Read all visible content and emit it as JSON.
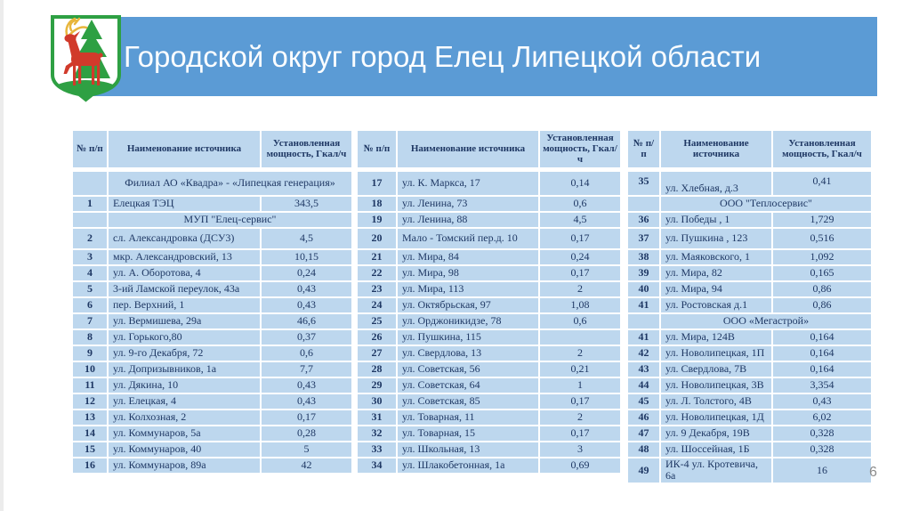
{
  "slide": {
    "title": "Городской округ город Елец Липецкой области",
    "page_number": "6"
  },
  "colors": {
    "band_blue": "#5B9BD5",
    "cell_blue": "#BDD7EE",
    "text_navy": "#1F3864",
    "grid_white": "#FFFFFF",
    "page_gray": "#8C8C8C",
    "arms_green": "#2EA043",
    "arms_red": "#D13A2B",
    "arms_yellow": "#E8B63C"
  },
  "icons": {
    "coat_of_arms": "yelets-city-coat-of-arms (red deer and green fir tree on white shield)"
  },
  "table_header": [
    "№ п/п",
    "Наименование источника",
    "Установленная мощность, Гкал/ч"
  ],
  "tables": [
    {
      "rows": [
        {
          "type": "section",
          "label": "Филиал АО «Квадра» - «Липецкая генерация»"
        },
        {
          "type": "data",
          "num": "1",
          "name": "Елецкая ТЭЦ",
          "value": "343,5"
        },
        {
          "type": "section",
          "label": "МУП \"Елец-сервис\""
        },
        {
          "type": "data",
          "num": "2",
          "name": "сл. Александровка (ДСУ3)",
          "value": "4,5"
        },
        {
          "type": "data",
          "num": "3",
          "name": "мкр. Александровский, 13",
          "value": "10,15"
        },
        {
          "type": "data",
          "num": "4",
          "name": "ул. А. Оборотова, 4",
          "value": "0,24"
        },
        {
          "type": "data",
          "num": "5",
          "name": "3-ий Ламской переулок, 43а",
          "value": "0,43"
        },
        {
          "type": "data",
          "num": "6",
          "name": "пер. Верхний, 1",
          "value": "0,43"
        },
        {
          "type": "data",
          "num": "7",
          "name": "ул. Вермишева, 29а",
          "value": "46,6"
        },
        {
          "type": "data",
          "num": "8",
          "name": "ул. Горького,80",
          "value": "0,37"
        },
        {
          "type": "data",
          "num": "9",
          "name": "ул. 9-го Декабря, 72",
          "value": "0,6"
        },
        {
          "type": "data",
          "num": "10",
          "name": "ул. Допризывников, 1а",
          "value": "7,7"
        },
        {
          "type": "data",
          "num": "11",
          "name": "ул. Дякина, 10",
          "value": "0,43"
        },
        {
          "type": "data",
          "num": "12",
          "name": "ул. Елецкая, 4",
          "value": "0,43"
        },
        {
          "type": "data",
          "num": "13",
          "name": "ул. Колхозная, 2",
          "value": "0,17"
        },
        {
          "type": "data",
          "num": "14",
          "name": "ул. Коммунаров, 5а",
          "value": "0,28"
        },
        {
          "type": "data",
          "num": "15",
          "name": "ул. Коммунаров, 40",
          "value": "5"
        },
        {
          "type": "data",
          "num": "16",
          "name": "ул. Коммунаров, 89а",
          "value": "42"
        }
      ]
    },
    {
      "rows": [
        {
          "type": "data",
          "num": "17",
          "name": "ул. К. Маркса, 17",
          "value": "0,14"
        },
        {
          "type": "data",
          "num": "18",
          "name": "ул. Ленина, 73",
          "value": "0,6"
        },
        {
          "type": "data",
          "num": "19",
          "name": "ул. Ленина, 88",
          "value": "4,5"
        },
        {
          "type": "data",
          "num": "20",
          "name": "Мало - Томский пер.д. 10",
          "value": "0,17"
        },
        {
          "type": "data",
          "num": "21",
          "name": "ул. Мира, 84",
          "value": "0,24"
        },
        {
          "type": "data",
          "num": "22",
          "name": "ул. Мира, 98",
          "value": "0,17"
        },
        {
          "type": "data",
          "num": "23",
          "name": "ул. Мира, 113",
          "value": "2"
        },
        {
          "type": "data",
          "num": "24",
          "name": "ул. Октябрьская, 97",
          "value": "1,08"
        },
        {
          "type": "data",
          "num": "25",
          "name": "ул. Орджоникидзе, 78",
          "value": "0,6"
        },
        {
          "type": "data",
          "num": "26",
          "name": "ул. Пушкина, 115",
          "value": ""
        },
        {
          "type": "data",
          "num": "27",
          "name": "ул. Свердлова, 13",
          "value": "2"
        },
        {
          "type": "data",
          "num": "28",
          "name": "ул. Советская, 56",
          "value": "0,21"
        },
        {
          "type": "data",
          "num": "29",
          "name": "ул. Советская, 64",
          "value": "1"
        },
        {
          "type": "data",
          "num": "30",
          "name": "ул. Советская, 85",
          "value": "0,17"
        },
        {
          "type": "data",
          "num": "31",
          "name": "ул. Товарная, 11",
          "value": "2"
        },
        {
          "type": "data",
          "num": "32",
          "name": "ул. Товарная, 15",
          "value": "0,17"
        },
        {
          "type": "data",
          "num": "33",
          "name": "ул. Школьная, 13",
          "value": "3"
        },
        {
          "type": "data",
          "num": "34",
          "name": "ул. Шлакобетонная, 1а",
          "value": "0,69"
        }
      ]
    },
    {
      "rows": [
        {
          "type": "data",
          "num": "35",
          "name": "ул. Хлебная, д.3",
          "value": "0,41",
          "style": "split"
        },
        {
          "type": "section",
          "label": "ООО \"Теплосервис\""
        },
        {
          "type": "data",
          "num": "36",
          "name": "ул. Победы , 1",
          "value": "1,729"
        },
        {
          "type": "data",
          "num": "37",
          "name": "ул. Пушкина , 123",
          "value": "0,516"
        },
        {
          "type": "data",
          "num": "38",
          "name": "ул. Маяковского, 1",
          "value": "1,092"
        },
        {
          "type": "data",
          "num": "39",
          "name": "ул. Мира, 82",
          "value": "0,165"
        },
        {
          "type": "data",
          "num": "40",
          "name": "ул. Мира, 94",
          "value": "0,86"
        },
        {
          "type": "data",
          "num": "41",
          "name": "ул. Ростовская д.1",
          "value": "0,86"
        },
        {
          "type": "section",
          "label": "ООО «Мегастрой»"
        },
        {
          "type": "data",
          "num": "41",
          "name": "ул. Мира, 124В",
          "value": "0,164"
        },
        {
          "type": "data",
          "num": "42",
          "name": "ул. Новолипецкая, 1П",
          "value": "0,164"
        },
        {
          "type": "data",
          "num": "43",
          "name": "ул. Свердлова, 7В",
          "value": "0,164"
        },
        {
          "type": "data",
          "num": "44",
          "name": "ул. Новолипецкая, 3В",
          "value": "3,354"
        },
        {
          "type": "data",
          "num": "45",
          "name": "ул. Л. Толстого, 4В",
          "value": "0,43"
        },
        {
          "type": "data",
          "num": "46",
          "name": "ул. Новолипецкая, 1Д",
          "value": "6,02"
        },
        {
          "type": "data",
          "num": "47",
          "name": "ул. 9 Декабря, 19В",
          "value": "0,328"
        },
        {
          "type": "data",
          "num": "48",
          "name": "ул. Шоссейная, 1Б",
          "value": "0,328"
        },
        {
          "type": "data",
          "num": "49",
          "name": "ИК-4 ул. Кротевича, 6а",
          "value": "16"
        }
      ]
    }
  ]
}
